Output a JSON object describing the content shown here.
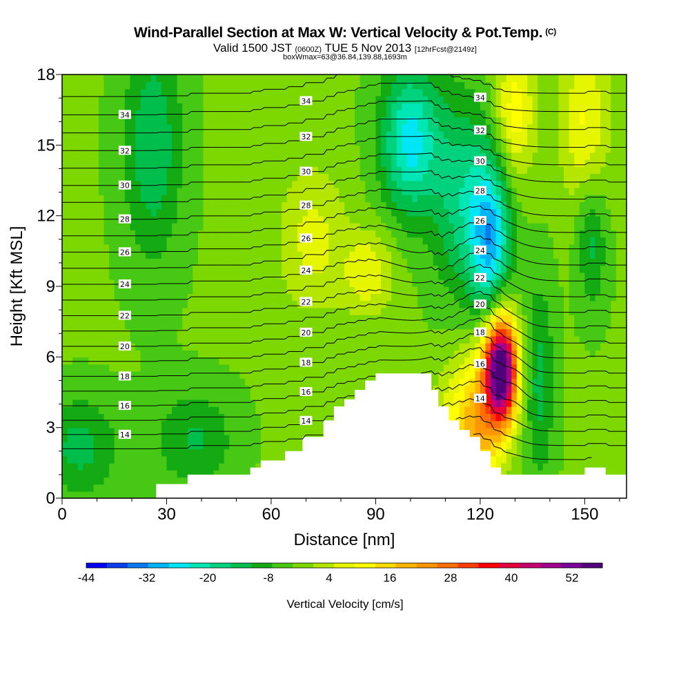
{
  "header": {
    "title": "Wind-Parallel Section at Max W: Vertical Velocity & Pot.Temp.",
    "copyright": "(C)",
    "valid_a": "Valid 1500 JST",
    "valid_utc": "(0600Z)",
    "valid_b": "TUE 5 Nov 2013",
    "forecast": "[12hrFcst@2149z]",
    "box": "boxWmax=63@36.84,139.88,1693m"
  },
  "chart_data": {
    "type": "heatmap",
    "xlabel": "Distance [nm]",
    "ylabel": "Height [Kft MSL]",
    "xlim": [
      0,
      162
    ],
    "ylim": [
      0,
      18
    ],
    "x_ticks": [
      0,
      30,
      60,
      90,
      120,
      150
    ],
    "y_ticks": [
      0,
      3,
      6,
      9,
      12,
      15,
      18
    ],
    "x_tick_labels": [
      "0",
      "30",
      "60",
      "90",
      "120",
      "150"
    ],
    "y_tick_labels": [
      "0",
      "3",
      "6",
      "9",
      "12",
      "15",
      "18"
    ],
    "colorbar": {
      "label": "Vertical Velocity [cm/s]",
      "min": -44,
      "max": 58,
      "step": 4,
      "tick_values": [
        -44,
        -32,
        -20,
        -8,
        4,
        16,
        28,
        40,
        52
      ],
      "tick_labels": [
        "-44",
        "-32",
        "-20",
        "-8",
        "4",
        "16",
        "28",
        "40",
        "52"
      ],
      "colors": [
        "#0000f5",
        "#0a3cf0",
        "#0a7af2",
        "#00b4f5",
        "#00e6f5",
        "#00e6b4",
        "#00d27d",
        "#00be4b",
        "#14aa14",
        "#46c814",
        "#7dd700",
        "#b4e600",
        "#e6f500",
        "#ffff00",
        "#ffdc00",
        "#ffb400",
        "#ff9600",
        "#ff6e00",
        "#ff3c00",
        "#ff0000",
        "#e6003c",
        "#c8006e",
        "#a0008c",
        "#780096",
        "#500078"
      ]
    },
    "theta_contours": {
      "interval": 1,
      "labeled_values": [
        14,
        16,
        18,
        20,
        22,
        24,
        26,
        28,
        30,
        32,
        34
      ]
    },
    "terrain": {
      "x": [
        0,
        27,
        27,
        36,
        36,
        48,
        48,
        54,
        54,
        57,
        57,
        60,
        60,
        64,
        64,
        69,
        69,
        75,
        75,
        78,
        78,
        81,
        81,
        84,
        84,
        87,
        87,
        90,
        90,
        93,
        93,
        106,
        106,
        108,
        108,
        111,
        111,
        114,
        114,
        117,
        117,
        120,
        120,
        123,
        123,
        126,
        126,
        129,
        129,
        150,
        150,
        156,
        156,
        162
      ],
      "height": [
        0,
        0,
        0.6,
        0.6,
        1.0,
        1.0,
        1.0,
        1.0,
        1.3,
        1.3,
        1.6,
        1.6,
        1.6,
        1.6,
        2.0,
        2.0,
        2.6,
        2.6,
        3.3,
        3.3,
        3.9,
        3.9,
        4.2,
        4.2,
        4.6,
        4.6,
        5.0,
        5.0,
        5.3,
        5.3,
        5.3,
        5.3,
        4.6,
        4.6,
        3.9,
        3.9,
        3.3,
        3.3,
        2.9,
        2.9,
        2.6,
        2.6,
        2.0,
        2.0,
        1.3,
        1.3,
        1.0,
        1.0,
        1.0,
        1.0,
        1.3,
        1.3,
        1.0,
        1.0
      ]
    },
    "w_max": {
      "value": 63,
      "x": 126,
      "height": 5.5
    }
  }
}
